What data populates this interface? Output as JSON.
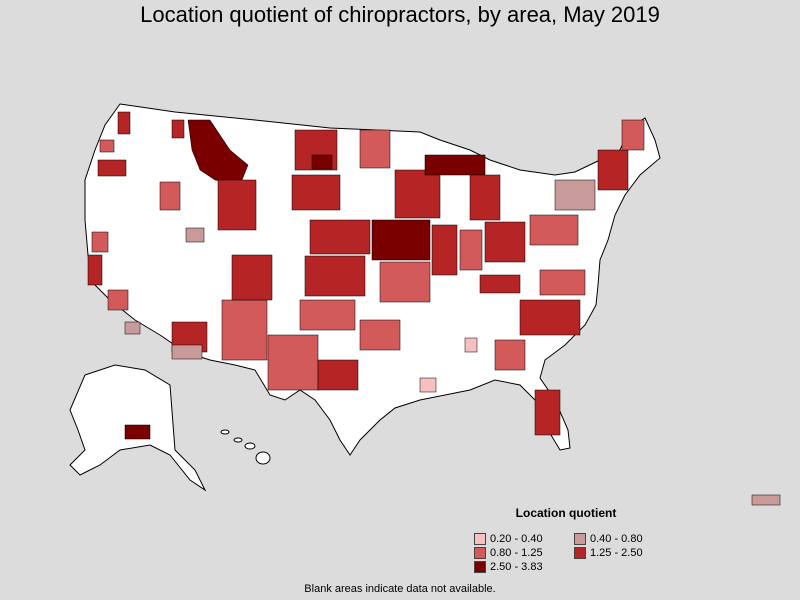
{
  "title": "Location quotient of chiropractors, by area, May 2019",
  "legend": {
    "title": "Location quotient",
    "items": [
      {
        "label": "0.20 - 0.40",
        "color": "#f5c0c0"
      },
      {
        "label": "0.40 - 0.80",
        "color": "#c99a9a"
      },
      {
        "label": "0.80 - 1.25",
        "color": "#d25a5a"
      },
      {
        "label": "1.25 - 2.50",
        "color": "#b52525"
      },
      {
        "label": "2.50 - 3.83",
        "color": "#7a0000"
      }
    ]
  },
  "footnote": "Blank areas indicate data not available.",
  "colors": {
    "background": "#dcdcdc",
    "blank": "#ffffff",
    "border": "#000000"
  }
}
